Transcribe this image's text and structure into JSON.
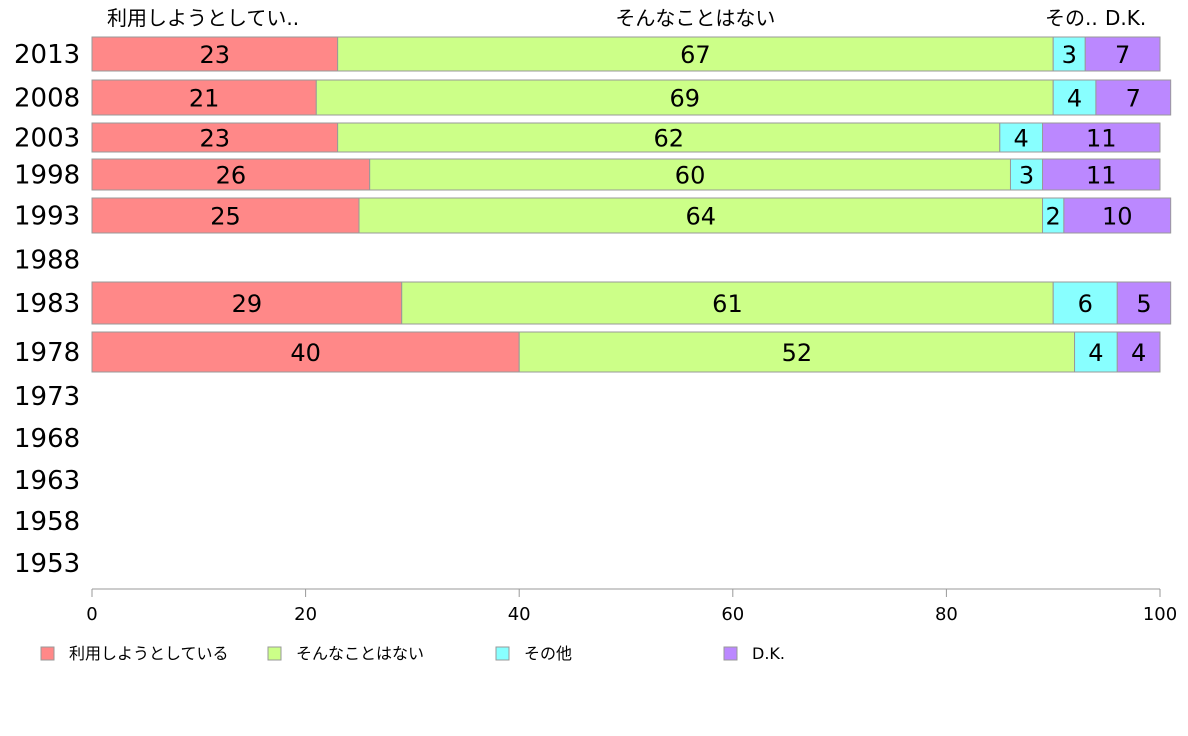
{
  "chart_data": {
    "type": "bar",
    "orientation": "horizontal",
    "stacked": true,
    "categories": [
      "2013",
      "2008",
      "2003",
      "1998",
      "1993",
      "1988",
      "1983",
      "1978",
      "1973",
      "1968",
      "1963",
      "1958",
      "1953"
    ],
    "series": [
      {
        "name": "利用しようとしている",
        "short_label": "利用しようとしてい..",
        "color": "#ff8888",
        "values": [
          23,
          21,
          23,
          26,
          25,
          null,
          29,
          40,
          null,
          null,
          null,
          null,
          null
        ]
      },
      {
        "name": "そんなことはない",
        "short_label": "そんなことはない",
        "color": "#ccff88",
        "values": [
          67,
          69,
          62,
          60,
          64,
          null,
          61,
          52,
          null,
          null,
          null,
          null,
          null
        ]
      },
      {
        "name": "その他",
        "short_label": "その..",
        "color": "#88ffff",
        "values": [
          3,
          4,
          4,
          3,
          2,
          null,
          6,
          4,
          null,
          null,
          null,
          null,
          null
        ]
      },
      {
        "name": "D.K.",
        "short_label": "D.K.",
        "color": "#bb88ff",
        "values": [
          7,
          7,
          11,
          11,
          10,
          null,
          5,
          4,
          null,
          null,
          null,
          null,
          null
        ]
      }
    ],
    "x_ticks": [
      "0",
      "20",
      "40",
      "60",
      "80",
      "100"
    ],
    "xlim": [
      0,
      100
    ],
    "grid": false,
    "legend_position": "bottom"
  }
}
